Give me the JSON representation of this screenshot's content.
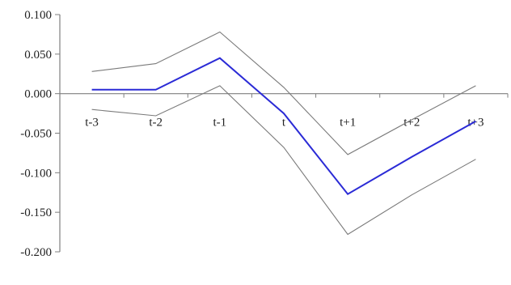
{
  "chart_data": {
    "type": "line",
    "categories": [
      "t-3",
      "t-2",
      "t-1",
      "t",
      "t+1",
      "t+2",
      "t+3"
    ],
    "ylim": [
      -0.2,
      0.1
    ],
    "yticks": [
      "0.100",
      "0.050",
      "0.000",
      "-0.050",
      "-0.100",
      "-0.150",
      "-0.200"
    ],
    "ytick_values": [
      0.1,
      0.05,
      0.0,
      -0.05,
      -0.1,
      -0.15,
      -0.2
    ],
    "grid": false,
    "legend": "none",
    "series": [
      {
        "values": [
          0.028,
          0.038,
          0.078,
          0.008,
          -0.077,
          -0.033,
          0.01
        ],
        "color": "#7a7a7a"
      },
      {
        "values": [
          0.005,
          0.005,
          0.045,
          -0.025,
          -0.127,
          -0.08,
          -0.035
        ],
        "color": "#2b2bd6"
      },
      {
        "values": [
          -0.02,
          -0.028,
          0.01,
          -0.068,
          -0.178,
          -0.128,
          -0.083
        ],
        "color": "#7a7a7a"
      }
    ]
  }
}
